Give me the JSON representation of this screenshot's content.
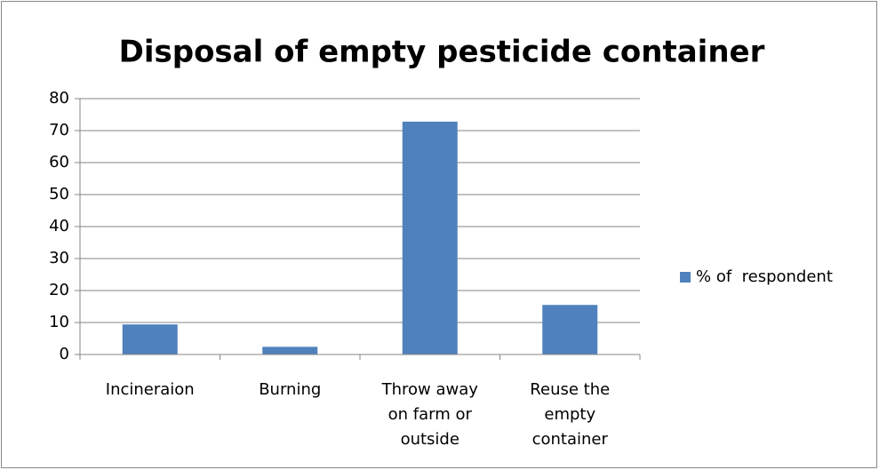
{
  "chart_data": {
    "type": "bar",
    "title": "Disposal of empty pesticide container",
    "categories": [
      "Incineraion",
      "Burning",
      "Throw away on farm or outside",
      "Reuse the empty container"
    ],
    "series": [
      {
        "name": "% of  respondent",
        "color": "#4f81bd",
        "values": [
          9.4,
          2.4,
          72.8,
          15.5
        ]
      }
    ],
    "ylim": [
      0,
      80
    ],
    "yticks": [
      0,
      10,
      20,
      30,
      40,
      50,
      60,
      70,
      80
    ],
    "grid": true,
    "legend": "right"
  }
}
